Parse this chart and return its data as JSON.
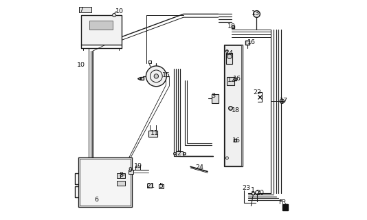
{
  "background_color": "#ffffff",
  "line_color": "#1a1a1a",
  "label_color": "#111111",
  "label_fontsize": 6.8,
  "dpi": 100,
  "figsize": [
    5.34,
    3.2
  ]
}
